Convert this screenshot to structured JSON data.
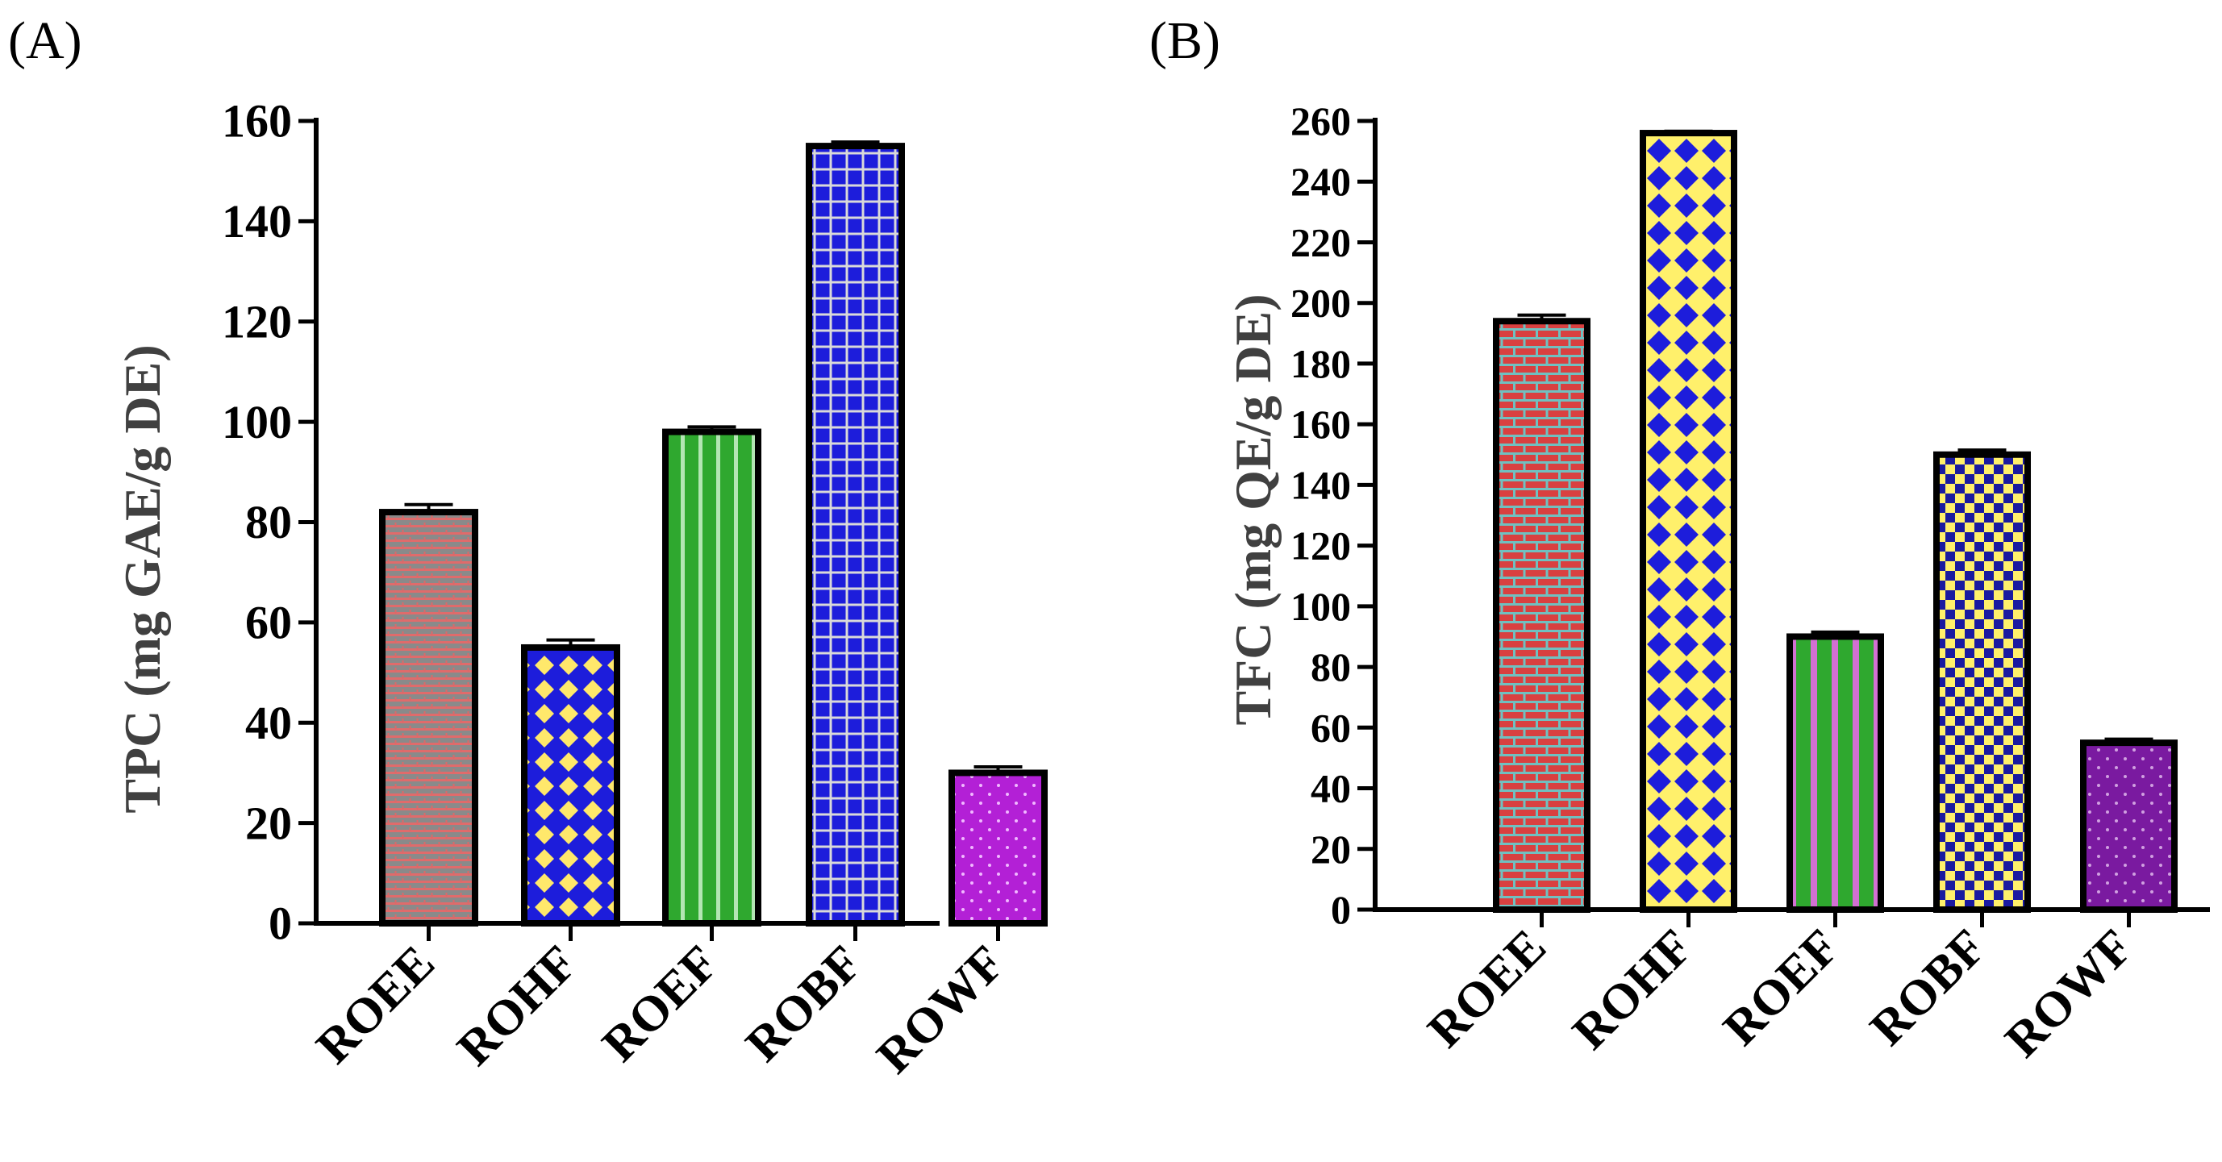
{
  "panels": [
    {
      "label": "(A)",
      "ylabel": "TPC (mg GAE/g DE)"
    },
    {
      "label": "(B)",
      "ylabel": "TFC (mg QE/g DE)"
    }
  ],
  "chart_data": [
    {
      "type": "bar",
      "panel": "(A)",
      "title": "",
      "xlabel": "",
      "ylabel": "TPC (mg GAE/g DE)",
      "categories": [
        "ROEE",
        "ROHF",
        "ROEF",
        "ROBF",
        "ROWF"
      ],
      "values": [
        82,
        55,
        98,
        155,
        30
      ],
      "errors": [
        1.5,
        1.5,
        1.0,
        0.8,
        1.2
      ],
      "ylim": [
        0,
        160
      ],
      "yticks": [
        0,
        20,
        40,
        60,
        80,
        100,
        120,
        140,
        160
      ],
      "grid": false,
      "bar_colors": [
        "#8a8a8a",
        "#1d1ddb",
        "#2fa82f",
        "#1d1ddb",
        "#b320d6"
      ],
      "pattern_colors": [
        "#e06b6b",
        "#ffe86b",
        "#b4e6b4",
        "#d9d9d9",
        "#f0b8ff"
      ]
    },
    {
      "type": "bar",
      "panel": "(B)",
      "title": "",
      "xlabel": "",
      "ylabel": "TFC (mg QE/g DE)",
      "categories": [
        "ROEE",
        "ROHF",
        "ROEF",
        "ROBF",
        "ROWF"
      ],
      "values": [
        194,
        256,
        90,
        150,
        55
      ],
      "errors": [
        2.0,
        0.6,
        1.5,
        1.5,
        1.2
      ],
      "ylim": [
        0,
        260
      ],
      "yticks": [
        0,
        20,
        40,
        60,
        80,
        100,
        120,
        140,
        160,
        180,
        200,
        220,
        240,
        260
      ],
      "grid": false,
      "bar_colors": [
        "#d94040",
        "#1d1ddb",
        "#2fa82f",
        "#1a1aa0",
        "#7a1aa0"
      ],
      "pattern_colors": [
        "#70c0c0",
        "#fff06b",
        "#d270d2",
        "#fff06b",
        "#d0a0e0"
      ]
    }
  ]
}
